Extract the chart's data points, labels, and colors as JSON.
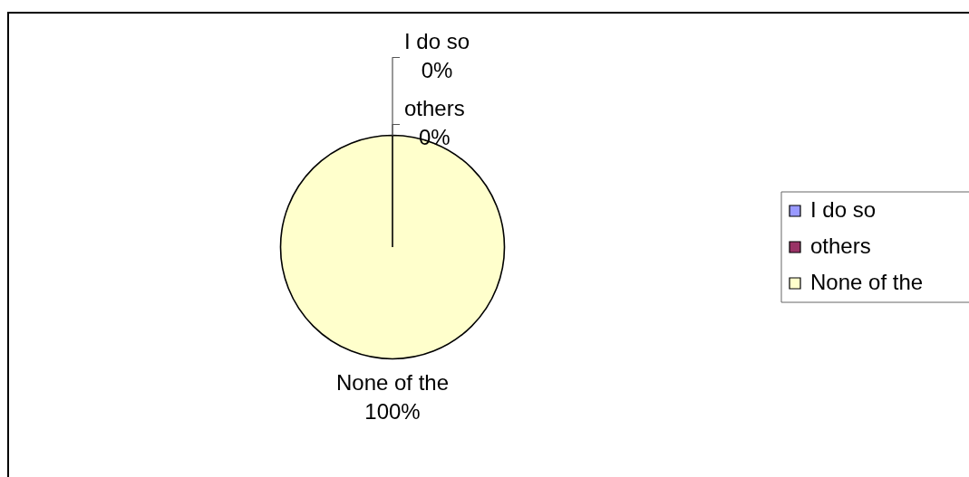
{
  "chart_data": {
    "type": "pie",
    "categories": [
      "I do so",
      "others",
      "None of the"
    ],
    "values": [
      0,
      0,
      100
    ],
    "colors": [
      "#9999ff",
      "#993366",
      "#ffffcc"
    ],
    "value_labels": [
      "0%",
      "0%",
      "100%"
    ],
    "legend": "right"
  }
}
